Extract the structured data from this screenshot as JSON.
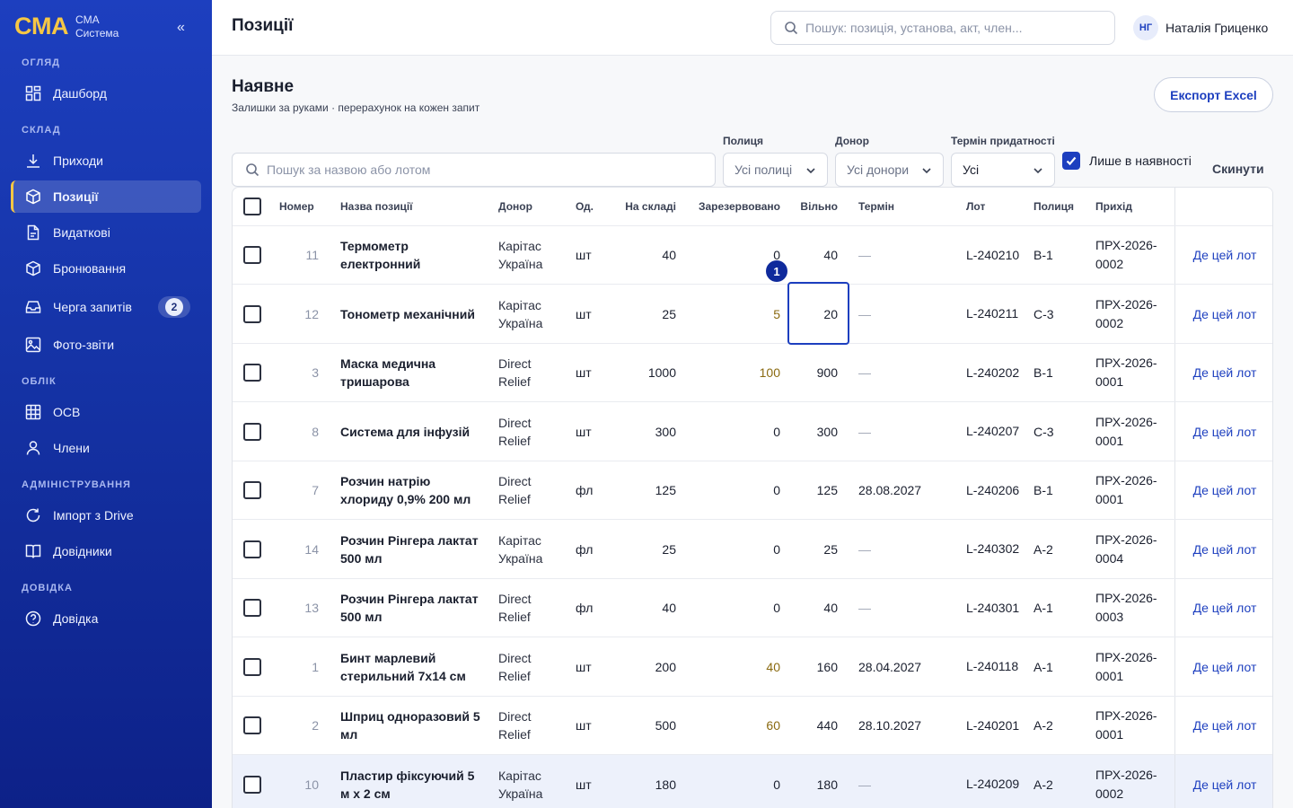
{
  "brand": {
    "logo": "CMA",
    "line1": "CMA",
    "line2": "Система",
    "collapse": "«"
  },
  "sidebar": {
    "sections": [
      {
        "title": "ОГЛЯД",
        "items": [
          {
            "label": "Дашборд",
            "icon": "dashboard-icon"
          }
        ]
      },
      {
        "title": "СКЛАД",
        "items": [
          {
            "label": "Приходи",
            "icon": "download-icon"
          },
          {
            "label": "Позиції",
            "icon": "box-icon",
            "active": true
          },
          {
            "label": "Видаткові",
            "icon": "document-icon"
          },
          {
            "label": "Бронювання",
            "icon": "box-icon"
          },
          {
            "label": "Черга запитів",
            "icon": "inbox-icon",
            "badge": "2"
          },
          {
            "label": "Фото-звіти",
            "icon": "image-icon"
          }
        ]
      },
      {
        "title": "ОБЛІК",
        "items": [
          {
            "label": "ОСВ",
            "icon": "grid-icon"
          },
          {
            "label": "Члени",
            "icon": "user-icon"
          }
        ]
      },
      {
        "title": "АДМІНІСТРУВАННЯ",
        "items": [
          {
            "label": "Імпорт з Drive",
            "icon": "refresh-icon"
          },
          {
            "label": "Довідники",
            "icon": "book-icon"
          }
        ]
      },
      {
        "title": "ДОВІДКА",
        "items": [
          {
            "label": "Довідка",
            "icon": "help-icon"
          }
        ]
      }
    ]
  },
  "header": {
    "title": "Позиції",
    "search_placeholder": "Пошук: позиція, установа, акт, член...",
    "user_initials": "НГ",
    "user_name": "Наталія Гриценко"
  },
  "content": {
    "title": "Наявне",
    "subtitle": "Залишки за руками · перерахунок на кожен запит",
    "export_label": "Експорт Excel"
  },
  "filters": {
    "search_placeholder": "Пошук за назвою або лотом",
    "shelf_label": "Полиця",
    "shelf_value": "Усі полиці",
    "donor_label": "Донор",
    "donor_value": "Усі донори",
    "term_label": "Термін придатності",
    "term_value": "Усі",
    "in_stock_label": "Лише в наявності",
    "in_stock_checked": true,
    "reset_label": "Скинути"
  },
  "table": {
    "columns": [
      "Номер",
      "Назва позиції",
      "Донор",
      "Од.",
      "На складі",
      "Зарезервовано",
      "Вільно",
      "Термін",
      "Лот",
      "Полиця",
      "Прихід"
    ],
    "action_label": "Де цей лот",
    "rows": [
      {
        "num": "11",
        "name": "Термометр електронний",
        "donor": "Карітас Україна",
        "unit": "шт",
        "stock": "40",
        "reserved": "0",
        "free": "40",
        "term": "—",
        "lot": "L-240210",
        "shelf": "B-1",
        "receipt": "ПРХ-2026-0002"
      },
      {
        "num": "12",
        "name": "Тонометр механічний",
        "donor": "Карітас Україна",
        "unit": "шт",
        "stock": "25",
        "reserved": "5",
        "free": "20",
        "term": "—",
        "lot": "L-240211",
        "shelf": "C-3",
        "receipt": "ПРХ-2026-0002"
      },
      {
        "num": "3",
        "name": "Маска медична тришарова",
        "donor": "Direct Relief",
        "unit": "шт",
        "stock": "1000",
        "reserved": "100",
        "free": "900",
        "term": "—",
        "lot": "L-240202",
        "shelf": "B-1",
        "receipt": "ПРХ-2026-0001"
      },
      {
        "num": "8",
        "name": "Система для інфузій",
        "donor": "Direct Relief",
        "unit": "шт",
        "stock": "300",
        "reserved": "0",
        "free": "300",
        "term": "—",
        "lot": "L-240207",
        "shelf": "C-3",
        "receipt": "ПРХ-2026-0001"
      },
      {
        "num": "7",
        "name": "Розчин натрію хлориду 0,9% 200 мл",
        "donor": "Direct Relief",
        "unit": "фл",
        "stock": "125",
        "reserved": "0",
        "free": "125",
        "term": "28.08.2027",
        "lot": "L-240206",
        "shelf": "B-1",
        "receipt": "ПРХ-2026-0001"
      },
      {
        "num": "14",
        "name": "Розчин Рінгера лактат 500 мл",
        "donor": "Карітас Україна",
        "unit": "фл",
        "stock": "25",
        "reserved": "0",
        "free": "25",
        "term": "—",
        "lot": "L-240302",
        "shelf": "A-2",
        "receipt": "ПРХ-2026-0004"
      },
      {
        "num": "13",
        "name": "Розчин Рінгера лактат 500 мл",
        "donor": "Direct Relief",
        "unit": "фл",
        "stock": "40",
        "reserved": "0",
        "free": "40",
        "term": "—",
        "lot": "L-240301",
        "shelf": "A-1",
        "receipt": "ПРХ-2026-0003"
      },
      {
        "num": "1",
        "name": "Бинт марлевий стерильний 7х14 см",
        "donor": "Direct Relief",
        "unit": "шт",
        "stock": "200",
        "reserved": "40",
        "free": "160",
        "term": "28.04.2027",
        "lot": "L-240118",
        "shelf": "A-1",
        "receipt": "ПРХ-2026-0001"
      },
      {
        "num": "2",
        "name": "Шприц одноразовий 5 мл",
        "donor": "Direct Relief",
        "unit": "шт",
        "stock": "500",
        "reserved": "60",
        "free": "440",
        "term": "28.10.2027",
        "lot": "L-240201",
        "shelf": "A-2",
        "receipt": "ПРХ-2026-0001"
      },
      {
        "num": "10",
        "name": "Пластир фіксуючий 5 м х 2 см",
        "donor": "Карітас Україна",
        "unit": "шт",
        "stock": "180",
        "reserved": "0",
        "free": "180",
        "term": "—",
        "lot": "L-240209",
        "shelf": "A-2",
        "receipt": "ПРХ-2026-0002",
        "highlighted": true
      }
    ]
  },
  "marker": "1",
  "colors": {
    "sidebar": "#1d3fbf",
    "accent": "#1d3fbf",
    "brand_yellow": "#f6c744",
    "reserved_amber": "#8a6a10"
  }
}
